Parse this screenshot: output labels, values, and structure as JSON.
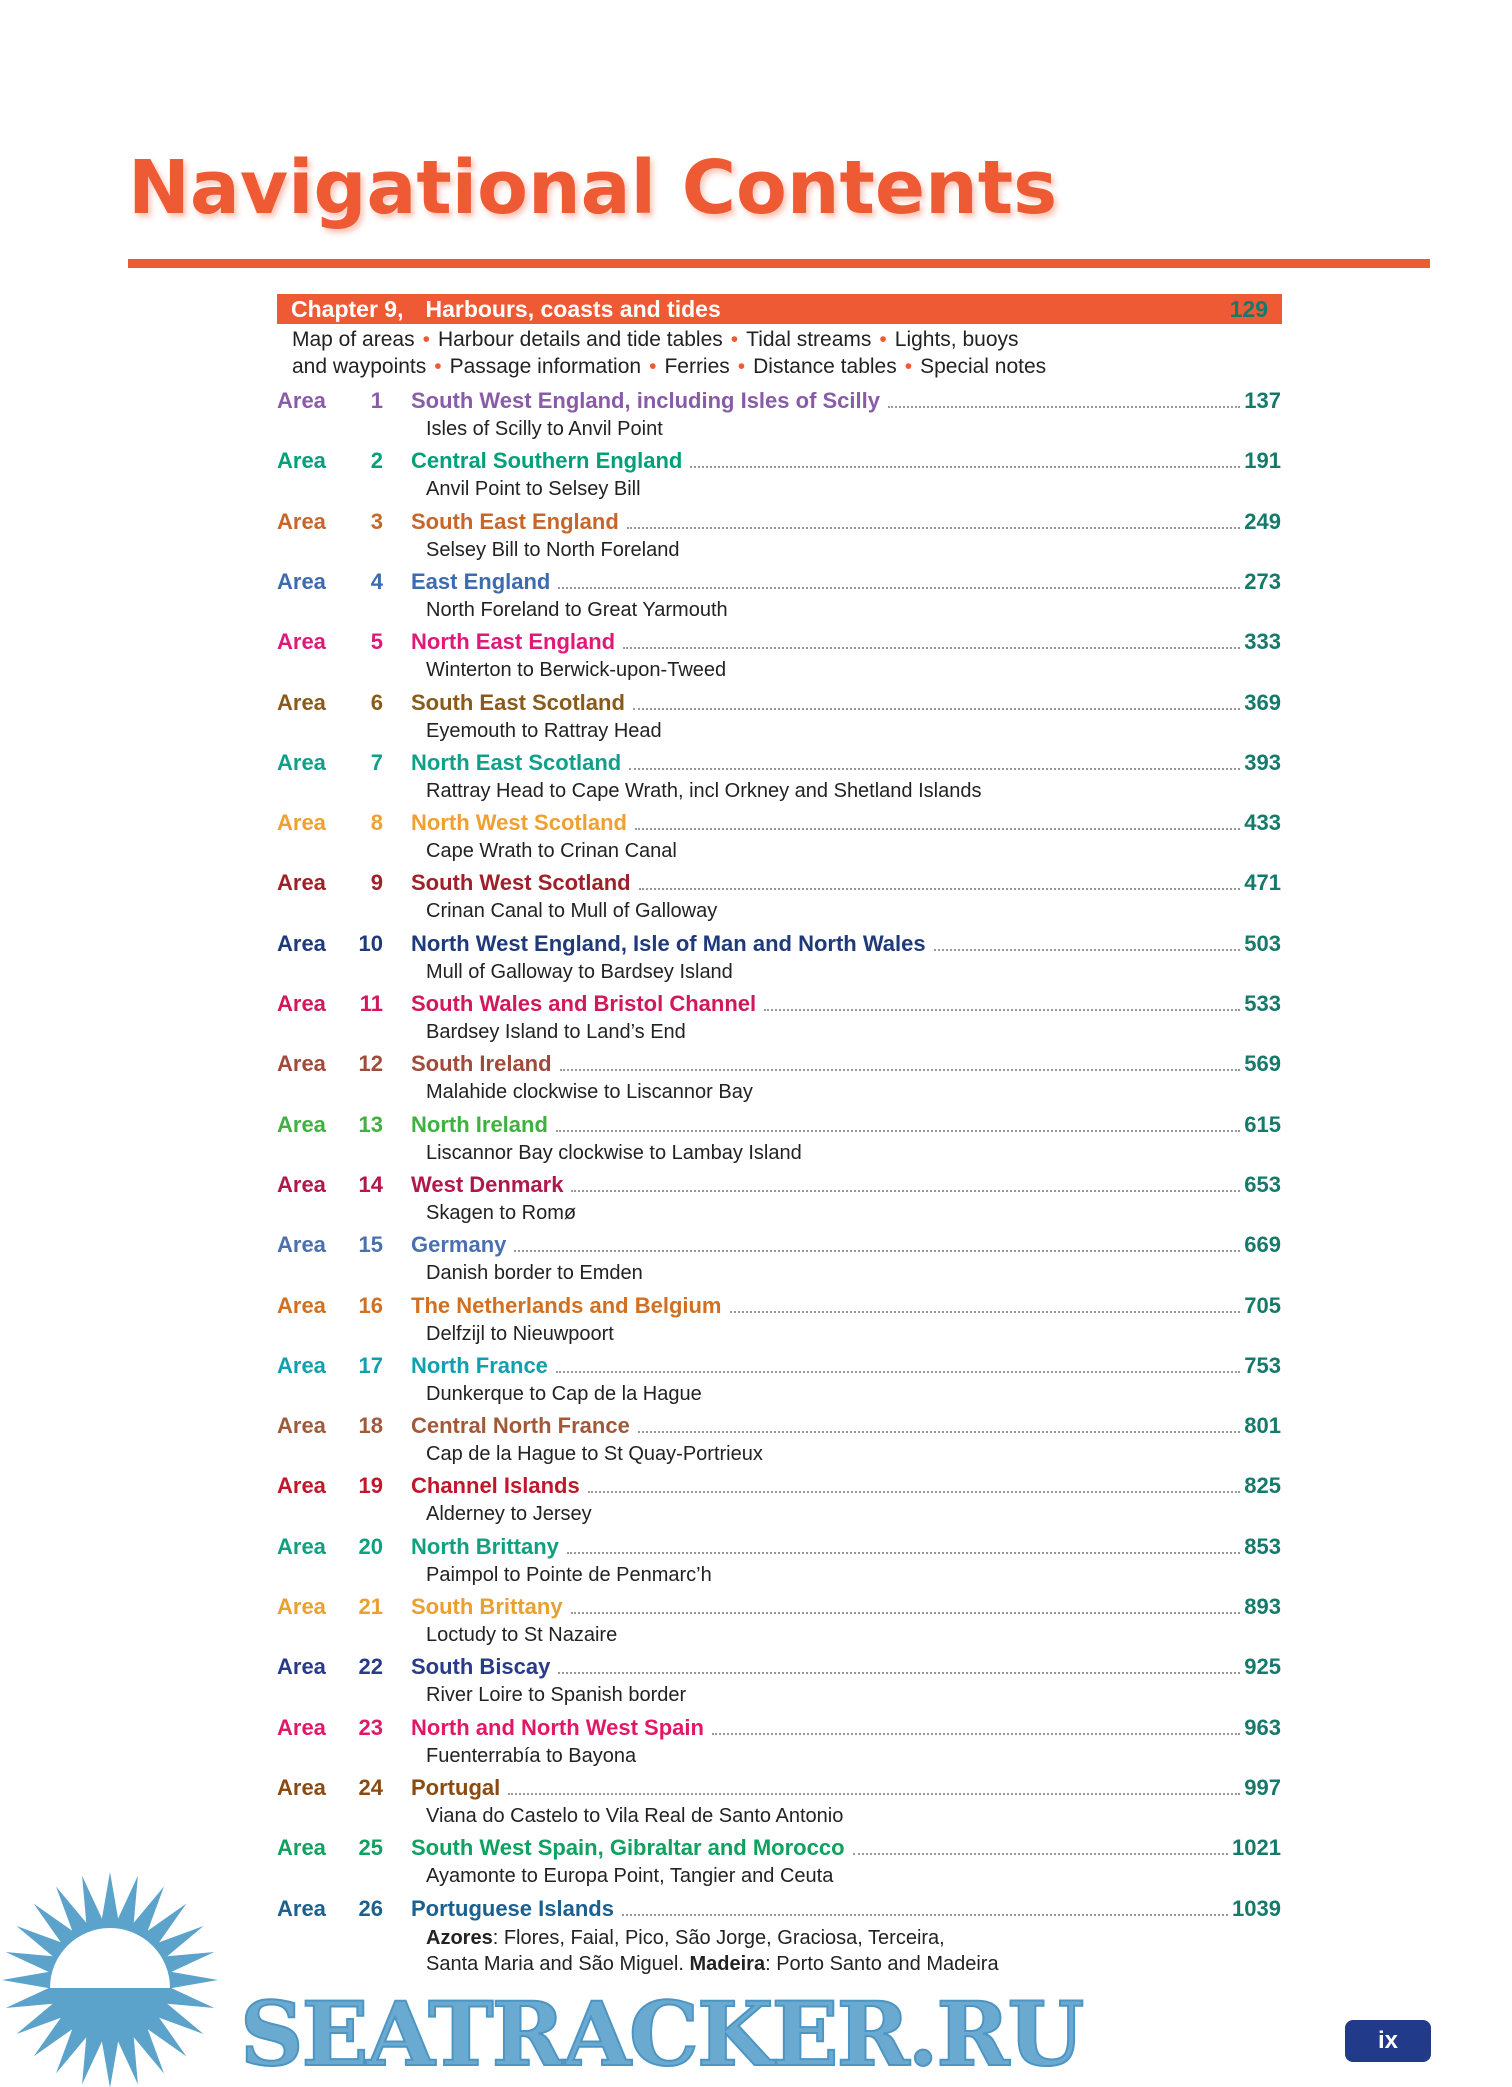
{
  "title": "Navigational Contents",
  "chapter": {
    "label": "Chapter",
    "number": "9,",
    "title": "Harbours, coasts  and tides",
    "page": "129",
    "contents_line1": [
      "Map of areas",
      "Harbour details and tide tables",
      "Tidal streams",
      "Lights, buoys"
    ],
    "contents_line2": [
      "and waypoints",
      "Passage information",
      "Ferries",
      "Distance tables",
      "Special notes"
    ]
  },
  "page_number_color": "#157a6a",
  "areas": [
    {
      "label": "Area",
      "num": "1",
      "name": "South West England, including Isles of Scilly",
      "page": "137",
      "sub": "Isles of Scilly to Anvil Point",
      "color": "#8a5ca8"
    },
    {
      "label": "Area",
      "num": "2",
      "name": "Central Southern England",
      "page": "191",
      "sub": "Anvil Point to Selsey Bill",
      "color": "#00a07a"
    },
    {
      "label": "Area",
      "num": "3",
      "name": "South East England",
      "page": "249",
      "sub": "Selsey Bill to North Foreland",
      "color": "#c8662a"
    },
    {
      "label": "Area",
      "num": "4",
      "name": "East England",
      "page": "273",
      "sub": "North Foreland to Great Yarmouth",
      "color": "#3c6bb0"
    },
    {
      "label": "Area",
      "num": "5",
      "name": "North East England",
      "page": "333",
      "sub": "Winterton to Berwick-upon-Tweed",
      "color": "#e0187a"
    },
    {
      "label": "Area",
      "num": "6",
      "name": "South East Scotland",
      "page": "369",
      "sub": "Eyemouth to Rattray Head",
      "color": "#8a5a1a"
    },
    {
      "label": "Area",
      "num": "7",
      "name": "North East Scotland",
      "page": "393",
      "sub": "Rattray Head to Cape Wrath, incl Orkney and Shetland Islands",
      "color": "#10a08a"
    },
    {
      "label": "Area",
      "num": "8",
      "name": "North West Scotland",
      "page": "433",
      "sub": "Cape Wrath to Crinan Canal",
      "color": "#f0a030"
    },
    {
      "label": "Area",
      "num": "9",
      "name": "South West Scotland",
      "page": "471",
      "sub": "Crinan Canal to Mull of Galloway",
      "color": "#a0202a"
    },
    {
      "label": "Area",
      "num": "10",
      "name": "North West England, Isle of Man and North Wales",
      "page": "503",
      "sub": "Mull of Galloway to Bardsey Island",
      "color": "#1f3a7a"
    },
    {
      "label": "Area",
      "num": "11",
      "name": "South Wales and Bristol Channel",
      "page": "533",
      "sub": "Bardsey Island to Land’s End",
      "color": "#d0185a"
    },
    {
      "label": "Area",
      "num": "12",
      "name": "South Ireland",
      "page": "569",
      "sub": "Malahide clockwise to Liscannor Bay",
      "color": "#a04a3a"
    },
    {
      "label": "Area",
      "num": "13",
      "name": "North Ireland",
      "page": "615",
      "sub": "Liscannor Bay clockwise to Lambay Island",
      "color": "#40b040"
    },
    {
      "label": "Area",
      "num": "14",
      "name": "West Denmark",
      "page": "653",
      "sub": "Skagen to Romø",
      "color": "#b0184a"
    },
    {
      "label": "Area",
      "num": "15",
      "name": "Germany",
      "page": "669",
      "sub": "Danish border to Emden",
      "color": "#4a70b0"
    },
    {
      "label": "Area",
      "num": "16",
      "name": "The Netherlands and Belgium",
      "page": "705",
      "sub": "Delfzijl to Nieuwpoort",
      "color": "#d07020"
    },
    {
      "label": "Area",
      "num": "17",
      "name": "North France",
      "page": "753",
      "sub": "Dunkerque to Cap de la Hague",
      "color": "#10a0b0"
    },
    {
      "label": "Area",
      "num": "18",
      "name": "Central North France",
      "page": "801",
      "sub": "Cap de la Hague to St Quay-Portrieux",
      "color": "#a05a3a"
    },
    {
      "label": "Area",
      "num": "19",
      "name": "Channel Islands",
      "page": "825",
      "sub": "Alderney to Jersey",
      "color": "#c0182a"
    },
    {
      "label": "Area",
      "num": "20",
      "name": "North Brittany",
      "page": "853",
      "sub": "Paimpol to Pointe de Penmarc’h",
      "color": "#10a080"
    },
    {
      "label": "Area",
      "num": "21",
      "name": "South Brittany",
      "page": "893",
      "sub": "Loctudy to St Nazaire",
      "color": "#e8a030"
    },
    {
      "label": "Area",
      "num": "22",
      "name": "South Biscay",
      "page": "925",
      "sub": "River Loire to Spanish border",
      "color": "#2a3a8a"
    },
    {
      "label": "Area",
      "num": "23",
      "name": "North and North West Spain",
      "page": "963",
      "sub": "Fuenterrabía to Bayona",
      "color": "#e01868"
    },
    {
      "label": "Area",
      "num": "24",
      "name": "Portugal",
      "page": "997",
      "sub": "Viana do Castelo to Vila Real de Santo Antonio",
      "color": "#8a4a10"
    },
    {
      "label": "Area",
      "num": "25",
      "name": "South West Spain, Gibraltar and Morocco",
      "page": "1021",
      "sub": "Ayamonte to Europa Point, Tangier and Ceuta",
      "color": "#10a060"
    },
    {
      "label": "Area",
      "num": "26",
      "name": "Portuguese Islands",
      "page": "1039",
      "sub": "",
      "color": "#1a6090"
    }
  ],
  "area26_details": {
    "azores_label": "Azores",
    "azores": ": Flores, Faial, Pico, São Jorge, Graciosa, Terceira,",
    "line2a": "Santa Maria and São Miguel. ",
    "madeira_label": "Madeira",
    "madeira": ": Porto Santo and Madeira"
  },
  "watermark": "SEATRACKER.RU",
  "page_badge": "ix"
}
